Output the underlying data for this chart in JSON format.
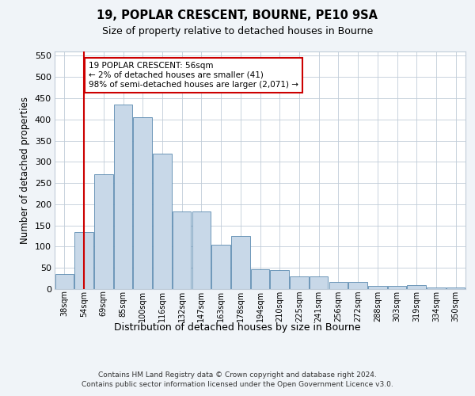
{
  "title1": "19, POPLAR CRESCENT, BOURNE, PE10 9SA",
  "title2": "Size of property relative to detached houses in Bourne",
  "xlabel": "Distribution of detached houses by size in Bourne",
  "ylabel": "Number of detached properties",
  "categories": [
    "38sqm",
    "54sqm",
    "69sqm",
    "85sqm",
    "100sqm",
    "116sqm",
    "132sqm",
    "147sqm",
    "163sqm",
    "178sqm",
    "194sqm",
    "210sqm",
    "225sqm",
    "241sqm",
    "256sqm",
    "272sqm",
    "288sqm",
    "303sqm",
    "319sqm",
    "334sqm",
    "350sqm"
  ],
  "values": [
    35,
    135,
    270,
    435,
    405,
    320,
    183,
    183,
    104,
    125,
    46,
    45,
    30,
    30,
    17,
    17,
    8,
    8,
    10,
    3,
    4
  ],
  "bar_color": "#c8d8e8",
  "bar_edge_color": "#5a8ab0",
  "vline_x": 1,
  "vline_color": "#cc0000",
  "annotation_text": "19 POPLAR CRESCENT: 56sqm\n← 2% of detached houses are smaller (41)\n98% of semi-detached houses are larger (2,071) →",
  "annotation_box_color": "#cc0000",
  "ylim": [
    0,
    560
  ],
  "yticks": [
    0,
    50,
    100,
    150,
    200,
    250,
    300,
    350,
    400,
    450,
    500,
    550
  ],
  "footer": "Contains HM Land Registry data © Crown copyright and database right 2024.\nContains public sector information licensed under the Open Government Licence v3.0.",
  "bg_color": "#f0f4f8",
  "plot_bg_color": "#ffffff"
}
